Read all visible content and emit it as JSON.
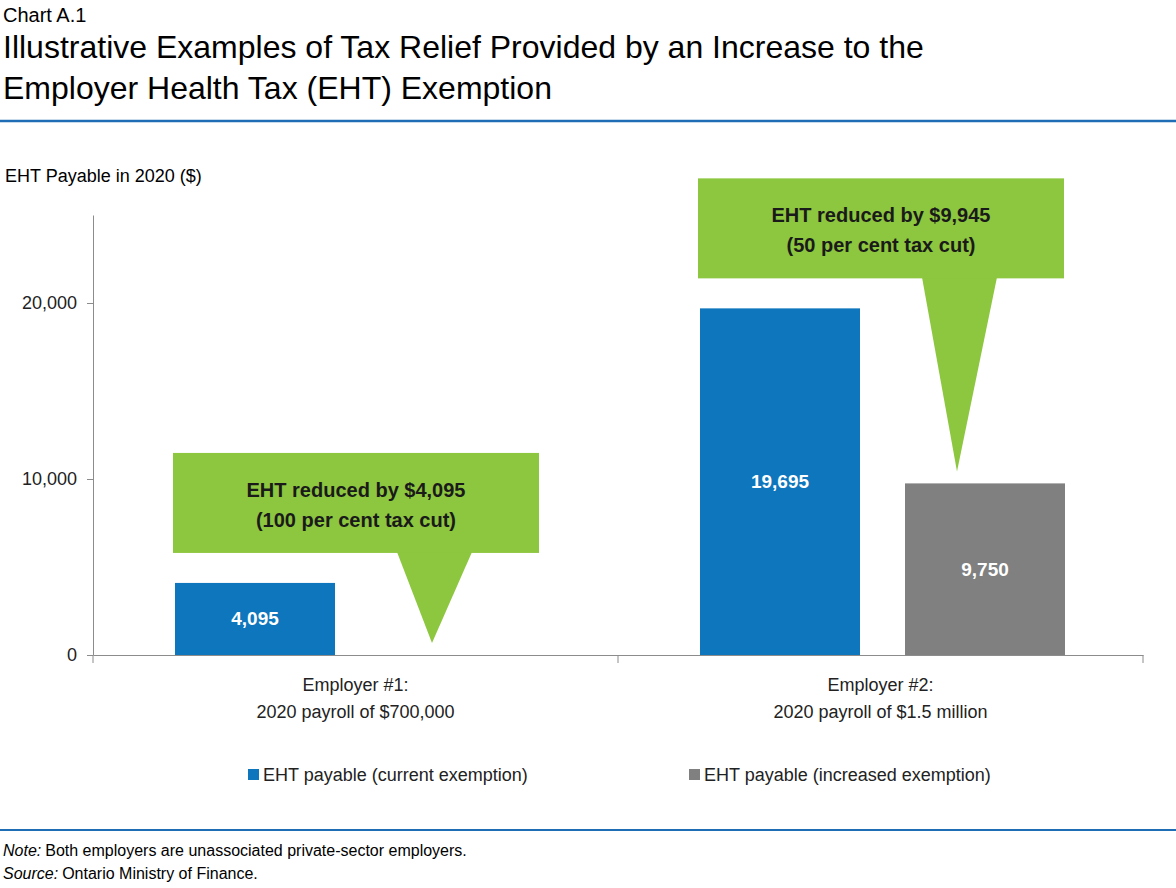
{
  "chart_data": {
    "type": "bar",
    "label": "Chart A.1",
    "title": [
      "Illustrative Examples of Tax Relief Provided by an Increase to the",
      "Employer Health Tax (EHT) Exemption"
    ],
    "y_label": "EHT Payable in 2020 ($)",
    "categories": [
      [
        "Employer #1:",
        "2020 payroll of $700,000"
      ],
      [
        "Employer #2:",
        "2020 payroll of $1.5 million"
      ]
    ],
    "series": [
      {
        "name": "EHT payable (current exemption)",
        "color": "#0e76bd",
        "values": [
          4095,
          19695
        ],
        "value_labels": [
          "4,095",
          "19,695"
        ]
      },
      {
        "name": "EHT payable (increased exemption)",
        "color": "#808080",
        "values": [
          0,
          9750
        ],
        "value_labels": [
          null,
          "9,750"
        ]
      }
    ],
    "ylim": [
      0,
      25000
    ],
    "yticks": [
      0,
      {
        "value": 10000,
        "label": "10,000"
      },
      {
        "value": 20000,
        "label": "20,000"
      }
    ],
    "grid": false,
    "legend": "bottom",
    "data_labels": true,
    "annotations": [
      [
        "EHT reduced by $4,095",
        "(100 per cent tax cut)"
      ],
      [
        "EHT reduced by $9,945",
        "(50 per cent tax cut)"
      ]
    ],
    "notes": [
      {
        "label": "Note:",
        "text": "Both employers are unassociated private-sector employers."
      },
      {
        "label": "Source:",
        "text": "Ontario Ministry of Finance."
      }
    ]
  }
}
